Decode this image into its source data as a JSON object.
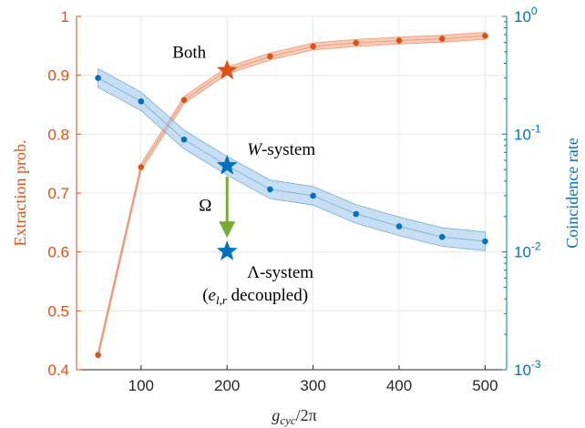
{
  "chart_data": {
    "type": "line",
    "xlabel": "g_cyc/2π",
    "xlabel_main": "g",
    "xlabel_sub": "cyc",
    "xlabel_rest": "/2π",
    "ylabel_left": "Extraction prob.",
    "ylabel_right": "Coincidence rate",
    "xlim": [
      25,
      525
    ],
    "ylim_left": [
      0.4,
      1.0
    ],
    "ylim_right": [
      0.001,
      1
    ],
    "yscale_right": "log",
    "grid": true,
    "x_ticks": [
      "100",
      "200",
      "300",
      "400",
      "500"
    ],
    "y_left_ticks": [
      "0.4",
      "0.5",
      "0.6",
      "0.7",
      "0.8",
      "0.9",
      "1"
    ],
    "y_right_ticks": [
      {
        "base": "10",
        "exp": "-3"
      },
      {
        "base": "10",
        "exp": "-2"
      },
      {
        "base": "10",
        "exp": "-1"
      },
      {
        "base": "10",
        "exp": "0"
      }
    ],
    "series": [
      {
        "axis": "left",
        "color": "#D95319",
        "band_color": "#F4B9A0",
        "x": [
          50,
          100,
          150,
          200,
          250,
          300,
          350,
          400,
          450,
          500
        ],
        "y": [
          0.425,
          0.744,
          0.858,
          0.908,
          0.932,
          0.949,
          0.955,
          0.959,
          0.962,
          0.967
        ],
        "band_halfwidth": 0.006
      },
      {
        "axis": "right",
        "color": "#0072BD",
        "band_color": "#B5D3EE",
        "x": [
          50,
          100,
          150,
          200,
          250,
          300,
          350,
          400,
          450,
          500
        ],
        "y": [
          0.3,
          0.19,
          0.09,
          0.054,
          0.034,
          0.03,
          0.021,
          0.0165,
          0.0134,
          0.0123
        ],
        "band_factor": 1.2
      }
    ],
    "annotations": [
      {
        "id": "both",
        "text": "Both",
        "x": 200,
        "y": 0.908,
        "axis": "left",
        "marker": "star",
        "color": "#D95319"
      },
      {
        "id": "w",
        "text_italic": "W",
        "text": "-system",
        "x": 200,
        "y": 0.054,
        "axis": "right",
        "marker": "star",
        "color": "#0072BD"
      },
      {
        "id": "lambda",
        "text": "Λ-system",
        "x": 200,
        "y": 0.0101,
        "axis": "right",
        "marker": "star",
        "color": "#0072BD"
      },
      {
        "id": "decoupled",
        "text_pre": "(",
        "text_italic": "e",
        "text_sub": "l,r",
        "text_post": " decoupled)"
      },
      {
        "id": "omega",
        "text": "Ω",
        "arrow_color": "#77AC30"
      }
    ]
  }
}
